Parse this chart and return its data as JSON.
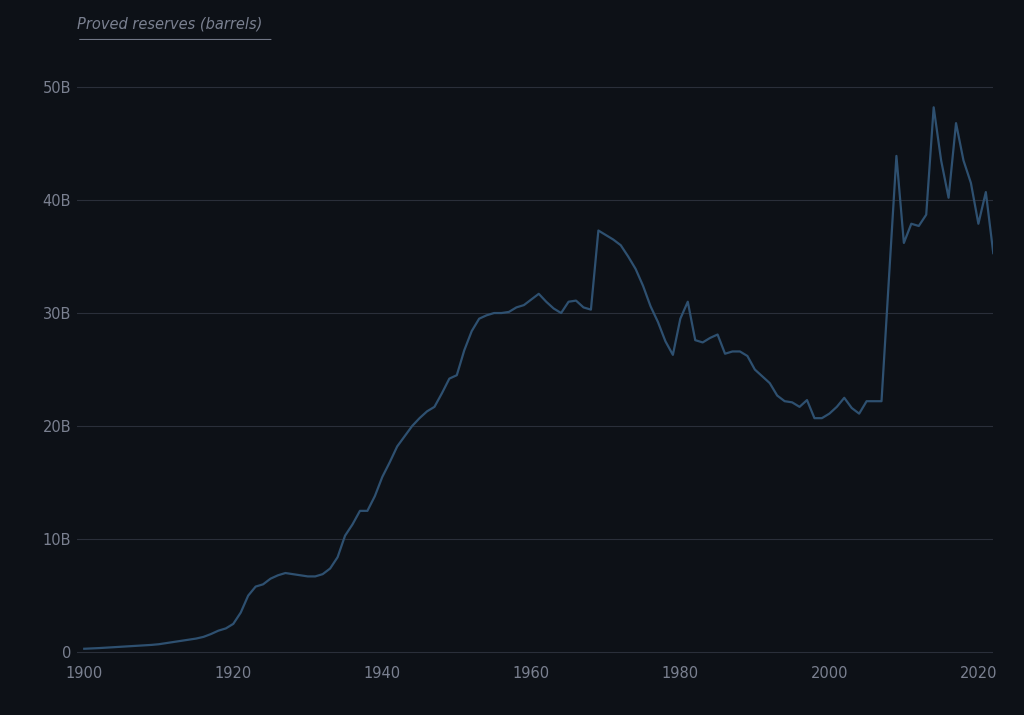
{
  "title": "Proved reserves (barrels)",
  "background_color": "#0d1117",
  "line_color": "#2e5070",
  "text_color": "#7a8090",
  "grid_color": "#2a2f3a",
  "yticks": [
    0,
    10000000000,
    20000000000,
    30000000000,
    40000000000,
    50000000000
  ],
  "ytick_labels": [
    "0",
    "10B",
    "20B",
    "30B",
    "40B",
    "50B"
  ],
  "xlim": [
    1899,
    2022
  ],
  "ylim": [
    -500000000,
    52000000000
  ],
  "xticks": [
    1900,
    1920,
    1940,
    1960,
    1980,
    2000,
    2020
  ],
  "data": {
    "years": [
      1900,
      1901,
      1902,
      1903,
      1904,
      1905,
      1906,
      1907,
      1908,
      1909,
      1910,
      1911,
      1912,
      1913,
      1914,
      1915,
      1916,
      1917,
      1918,
      1919,
      1920,
      1921,
      1922,
      1923,
      1924,
      1925,
      1926,
      1927,
      1928,
      1929,
      1930,
      1931,
      1932,
      1933,
      1934,
      1935,
      1936,
      1937,
      1938,
      1939,
      1940,
      1941,
      1942,
      1943,
      1944,
      1945,
      1946,
      1947,
      1948,
      1949,
      1950,
      1951,
      1952,
      1953,
      1954,
      1955,
      1956,
      1957,
      1958,
      1959,
      1960,
      1961,
      1962,
      1963,
      1964,
      1965,
      1966,
      1967,
      1968,
      1969,
      1970,
      1971,
      1972,
      1973,
      1974,
      1975,
      1976,
      1977,
      1978,
      1979,
      1980,
      1981,
      1982,
      1983,
      1984,
      1985,
      1986,
      1987,
      1988,
      1989,
      1990,
      1991,
      1992,
      1993,
      1994,
      1995,
      1996,
      1997,
      1998,
      1999,
      2000,
      2001,
      2002,
      2003,
      2004,
      2005,
      2006,
      2007,
      2008,
      2009,
      2010,
      2011,
      2012,
      2013,
      2014,
      2015,
      2016,
      2017,
      2018,
      2019,
      2020,
      2021,
      2022
    ],
    "values": [
      300000000,
      330000000,
      360000000,
      400000000,
      440000000,
      480000000,
      520000000,
      560000000,
      600000000,
      640000000,
      700000000,
      800000000,
      900000000,
      1000000000,
      1100000000,
      1200000000,
      1350000000,
      1600000000,
      1900000000,
      2100000000,
      2500000000,
      3500000000,
      5000000000,
      5800000000,
      6000000000,
      6500000000,
      6800000000,
      7000000000,
      6900000000,
      6800000000,
      6700000000,
      6700000000,
      6900000000,
      7400000000,
      8400000000,
      10300000000,
      11300000000,
      12500000000,
      12500000000,
      13800000000,
      15500000000,
      16800000000,
      18200000000,
      19100000000,
      20000000000,
      20700000000,
      21300000000,
      21700000000,
      22900000000,
      24200000000,
      24500000000,
      26700000000,
      28400000000,
      29500000000,
      29800000000,
      30000000000,
      30000000000,
      30100000000,
      30500000000,
      30700000000,
      31200000000,
      31700000000,
      31000000000,
      30400000000,
      30000000000,
      31000000000,
      31100000000,
      30500000000,
      30300000000,
      37300000000,
      36900000000,
      36500000000,
      36000000000,
      35000000000,
      33900000000,
      32400000000,
      30600000000,
      29200000000,
      27500000000,
      26300000000,
      29500000000,
      31000000000,
      27600000000,
      27400000000,
      27800000000,
      28100000000,
      26400000000,
      26600000000,
      26600000000,
      26200000000,
      25000000000,
      24400000000,
      23800000000,
      22700000000,
      22200000000,
      22100000000,
      21700000000,
      22300000000,
      20700000000,
      20700000000,
      21100000000,
      21700000000,
      22500000000,
      21600000000,
      21100000000,
      22200000000,
      22200000000,
      22200000000,
      33100000000,
      43900000000,
      36200000000,
      37900000000,
      37700000000,
      38700000000,
      48200000000,
      43500000000,
      40200000000,
      46800000000,
      43500000000,
      41500000000,
      37900000000,
      40700000000,
      35300000000
    ]
  }
}
